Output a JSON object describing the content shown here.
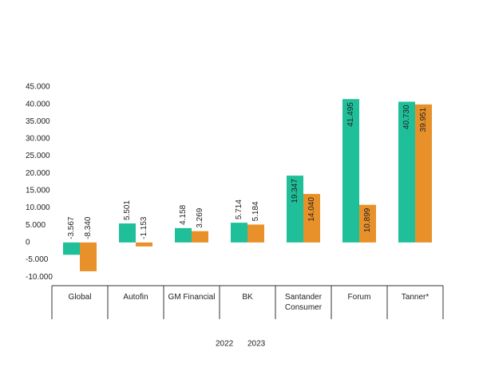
{
  "chart_data": {
    "type": "bar",
    "categories": [
      "Global",
      "Autofin",
      "GM Financial",
      "BK",
      "Santander Consumer",
      "Forum",
      "Tanner*"
    ],
    "series": [
      {
        "name": "2022",
        "color": "#1fbf9a",
        "values": [
          -3567,
          5501,
          4158,
          5714,
          19347,
          41495,
          40730
        ],
        "value_labels": [
          "-3.567",
          "5.501",
          "4.158",
          "5.714",
          "19.347",
          "41.495",
          "40.730"
        ]
      },
      {
        "name": "2023",
        "color": "#e8912a",
        "values": [
          -8340,
          -1153,
          3269,
          5184,
          14040,
          10899,
          39951
        ],
        "value_labels": [
          "-8.340",
          "-1.153",
          "3.269",
          "5.184",
          "14.040",
          "10.899",
          "39.951"
        ]
      }
    ],
    "ylim": [
      -12500,
      45000
    ],
    "yticks": [
      {
        "value": -10000,
        "label": "-10.000"
      },
      {
        "value": -5000,
        "label": "-5.000"
      },
      0,
      {
        "value": 5000,
        "label": "5.000"
      },
      {
        "value": 10000,
        "label": "10.000"
      },
      {
        "value": 15000,
        "label": "15.000"
      },
      {
        "value": 20000,
        "label": "20.000"
      },
      {
        "value": 25000,
        "label": "25.000"
      },
      {
        "value": 30000,
        "label": "30.000"
      },
      {
        "value": 35000,
        "label": "35.000"
      },
      {
        "value": 40000,
        "label": "40.000"
      },
      {
        "value": 45000,
        "label": "45.000"
      }
    ],
    "grid": false
  }
}
